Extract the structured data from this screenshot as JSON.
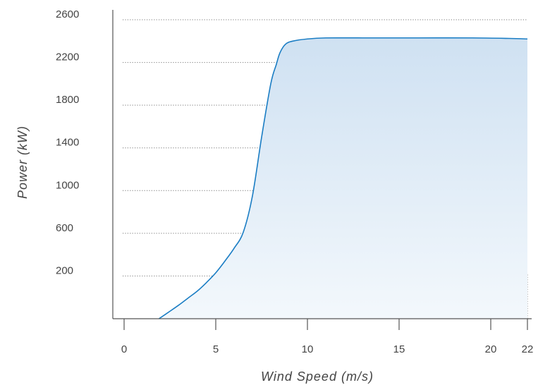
{
  "chart_data": {
    "type": "area",
    "title": "",
    "xlabel": "Wind Speed (m/s)",
    "ylabel": "Power (kW)",
    "xlim": [
      0,
      22
    ],
    "ylim": [
      -200,
      2600
    ],
    "x_ticks": [
      0,
      5,
      10,
      15,
      20,
      22
    ],
    "y_ticks": [
      200,
      600,
      1000,
      1400,
      1800,
      2200,
      2600
    ],
    "grid": "horizontal dotted",
    "legend": "none",
    "series": [
      {
        "x": [
          1.9,
          2.5,
          3,
          3.5,
          4,
          4.5,
          5,
          5.5,
          6,
          6.5,
          7,
          7.5,
          8,
          8.3,
          8.5,
          8.8,
          9.2,
          10,
          11,
          13,
          16,
          19,
          21,
          22
        ],
        "y": [
          -200,
          -130,
          -70,
          -5,
          60,
          140,
          230,
          340,
          460,
          610,
          950,
          1500,
          2000,
          2180,
          2290,
          2370,
          2400,
          2420,
          2430,
          2430,
          2430,
          2430,
          2425,
          2420
        ]
      }
    ]
  },
  "colors": {
    "line": "#1a7dc4",
    "fill_top": "#cfe1f2",
    "fill_bottom": "#f3f8fc",
    "axis": "#555555",
    "grid": "#777777",
    "text": "#444444"
  }
}
